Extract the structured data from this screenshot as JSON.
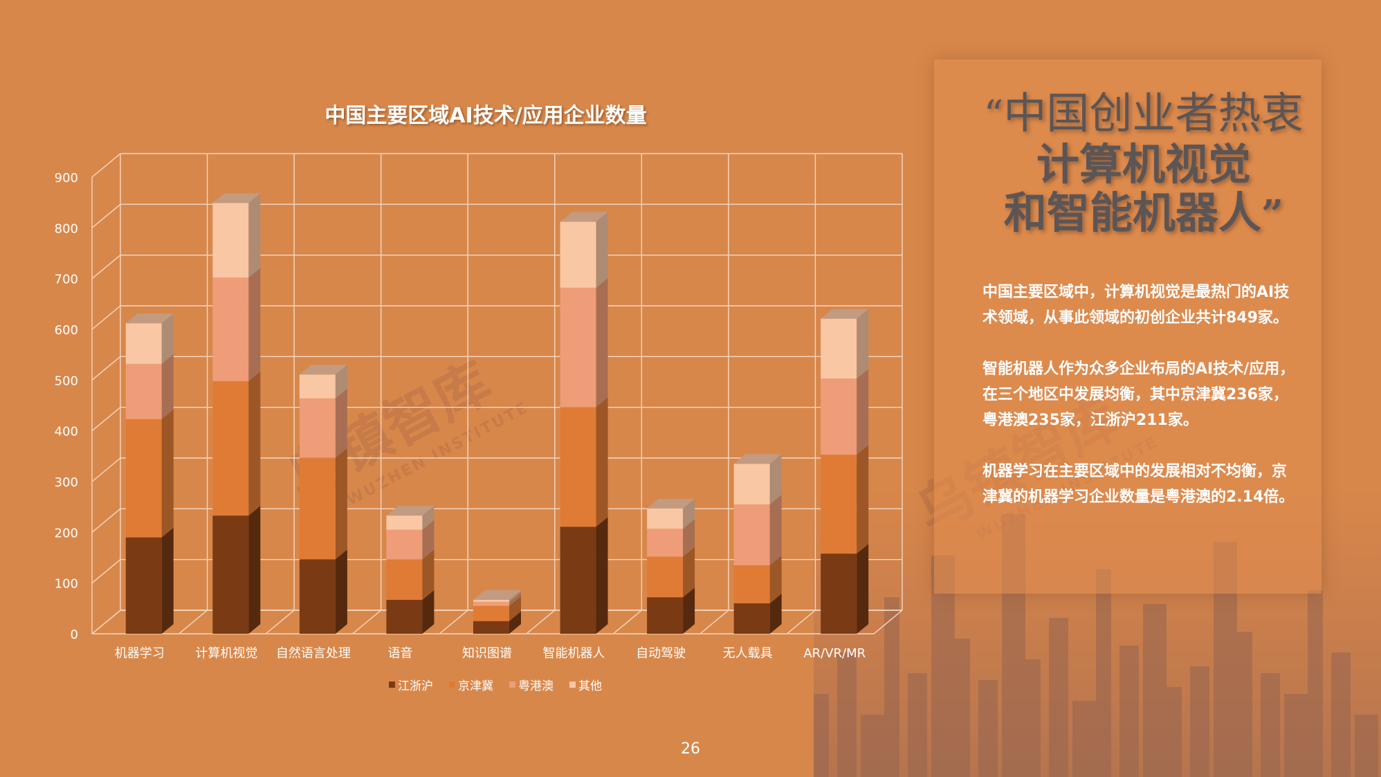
{
  "chart_data": {
    "type": "bar",
    "stacked": true,
    "three_d": true,
    "title": "中国主要区域AI技术/应用企业数量",
    "categories": [
      "机器学习",
      "计算机视觉",
      "自然语言处理",
      "语音",
      "知识图谱",
      "智能机器人",
      "自动驾驶",
      "无人载具",
      "AR/VR/MR"
    ],
    "series": [
      {
        "name": "江浙沪",
        "color": "#7a3a14",
        "values": [
          190,
          233,
          147,
          67,
          25,
          211,
          72,
          60,
          158
        ]
      },
      {
        "name": "京津冀",
        "color": "#e07b35",
        "values": [
          233,
          265,
          200,
          80,
          30,
          236,
          80,
          75,
          195
        ]
      },
      {
        "name": "粤港澳",
        "color": "#ee9d78",
        "values": [
          109,
          204,
          117,
          58,
          8,
          235,
          55,
          120,
          150
        ]
      },
      {
        "name": "其他",
        "color": "#f9c7a4",
        "values": [
          80,
          147,
          47,
          28,
          4,
          130,
          40,
          80,
          118
        ]
      }
    ],
    "ylim": [
      0,
      900
    ],
    "yticks": [
      "0",
      "100",
      "200",
      "300",
      "400",
      "500",
      "600",
      "700",
      "800",
      "900"
    ],
    "grid": true,
    "legend_position": "bottom"
  },
  "headline": {
    "open_quote": "“",
    "line1": "中国创业者热衷",
    "line2": "计算机视觉",
    "line3": "和智能机器人",
    "close_quote": "”"
  },
  "paragraphs": [
    "中国主要区域中，计算机视觉是最热门的AI技术领域，从事此领域的初创企业共计849家。",
    "智能机器人作为众多企业布局的AI技术/应用，在三个地区中发展均衡，其中京津冀236家，粤港澳235家，江浙沪211家。",
    "机器学习在主要区域中的发展相对不均衡，京津冀的机器学习企业数量是粤港澳的2.14倍。"
  ],
  "watermark": {
    "name": "乌镇智库",
    "latin": "WUZHEN INSTITUTE"
  },
  "page_number": "26"
}
